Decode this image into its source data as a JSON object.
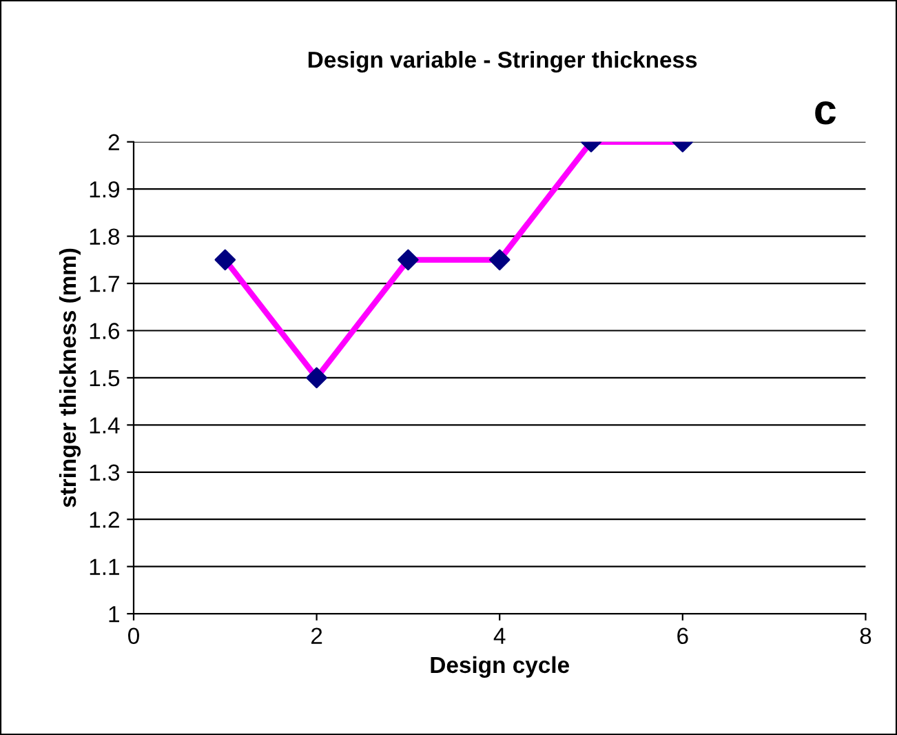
{
  "chart_data": {
    "type": "line",
    "title": "Design variable - Stringer thickness",
    "xlabel": "Design cycle",
    "ylabel": "stringer thickness (mm)",
    "annotations": [
      "c"
    ],
    "series": [
      {
        "color": "#ff00ff",
        "colors": [
          "#000080",
          "#000080",
          "#000080",
          "#000080",
          "#000080",
          "#000080"
        ],
        "x": [
          1,
          2,
          3,
          4,
          5,
          6
        ],
        "values": [
          1.75,
          1.5,
          1.75,
          1.75,
          2,
          2
        ]
      }
    ],
    "xlim": [
      0,
      8
    ],
    "xticks": [
      0,
      2,
      4,
      6,
      8
    ],
    "ylim": [
      1,
      2
    ],
    "yticks": [
      1,
      1.1,
      1.2,
      1.3,
      1.4,
      1.5,
      1.6,
      1.7,
      1.8,
      1.9,
      2
    ],
    "grid": "y",
    "marker": "diamond",
    "line_style": "solid",
    "legend": false
  }
}
